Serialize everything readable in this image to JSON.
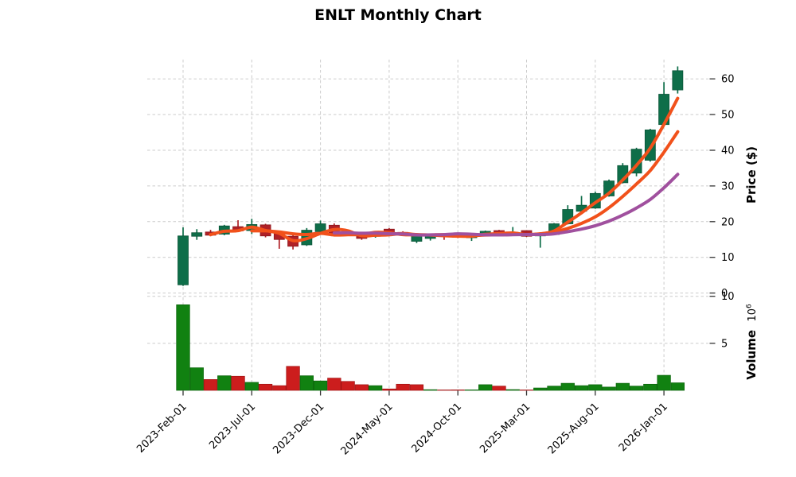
{
  "title": "ENLT Monthly Chart",
  "chart_data": {
    "type": "candlestick",
    "has_volume_panel": true,
    "price_axis": {
      "label": "Price ($)",
      "ticks": [
        0,
        10,
        20,
        30,
        40,
        50,
        60
      ],
      "range": [
        0,
        65.5
      ]
    },
    "volume_axis": {
      "label": "Volume",
      "multiplier_base": "10",
      "multiplier_exp": "6",
      "ticks": [
        5,
        10
      ],
      "range": [
        0,
        10.1
      ]
    },
    "x_axis": {
      "tick_indices": [
        0,
        5,
        10,
        15,
        20,
        25,
        30,
        35
      ],
      "tick_labels": [
        "2023-Feb-01",
        "2023-Jul-01",
        "2023-Dec-01",
        "2024-May-01",
        "2024-Oct-01",
        "2025-Mar-01",
        "2025-Aug-01",
        "2026-Jan-01"
      ]
    },
    "moving_averages": [
      {
        "name": "SMA-3",
        "window": 3,
        "color": "#f1511b"
      },
      {
        "name": "SMA-6",
        "window": 6,
        "color": "#f1511b"
      },
      {
        "name": "SMA-12",
        "window": 12,
        "color": "#a0509e"
      }
    ],
    "colors": {
      "up_candle": "#0e6e49",
      "up_candle_edge": "#0a5437",
      "down_candle": "#b02127",
      "down_candle_edge": "#8c181e",
      "up_volume": "#118111",
      "up_volume_edge": "#0c640c",
      "down_volume": "#cc1d1d",
      "down_volume_edge": "#a11313",
      "grid": "#cccccc",
      "tick": "#333333",
      "text": "#000000",
      "background": "#ffffff"
    },
    "candles": [
      {
        "date": "2023-02",
        "open": 2.3,
        "high": 18.4,
        "low": 2.0,
        "close": 16.0,
        "volume_m": 9.1,
        "dir": "up",
        "vol_dir": "up"
      },
      {
        "date": "2023-03",
        "open": 15.9,
        "high": 17.9,
        "low": 14.9,
        "close": 16.9,
        "volume_m": 2.4,
        "dir": "up",
        "vol_dir": "up"
      },
      {
        "date": "2023-04",
        "open": 17.1,
        "high": 17.7,
        "low": 15.9,
        "close": 16.2,
        "volume_m": 1.15,
        "dir": "down",
        "vol_dir": "down"
      },
      {
        "date": "2023-05",
        "open": 16.5,
        "high": 19.1,
        "low": 16.2,
        "close": 18.8,
        "volume_m": 1.55,
        "dir": "up",
        "vol_dir": "up"
      },
      {
        "date": "2023-06",
        "open": 18.6,
        "high": 20.4,
        "low": 17.2,
        "close": 17.4,
        "volume_m": 1.5,
        "dir": "down",
        "vol_dir": "down"
      },
      {
        "date": "2023-07",
        "open": 17.5,
        "high": 20.8,
        "low": 16.5,
        "close": 19.2,
        "volume_m": 0.85,
        "dir": "up",
        "vol_dir": "up"
      },
      {
        "date": "2023-08",
        "open": 19.1,
        "high": 19.4,
        "low": 15.6,
        "close": 16.0,
        "volume_m": 0.65,
        "dir": "down",
        "vol_dir": "down"
      },
      {
        "date": "2023-09",
        "open": 17.0,
        "high": 17.3,
        "low": 12.4,
        "close": 15.0,
        "volume_m": 0.5,
        "dir": "down",
        "vol_dir": "down"
      },
      {
        "date": "2023-10",
        "open": 15.9,
        "high": 16.2,
        "low": 12.2,
        "close": 13.1,
        "volume_m": 2.55,
        "dir": "down",
        "vol_dir": "down"
      },
      {
        "date": "2023-11",
        "open": 13.5,
        "high": 18.2,
        "low": 13.2,
        "close": 17.6,
        "volume_m": 1.55,
        "dir": "up",
        "vol_dir": "up"
      },
      {
        "date": "2023-12",
        "open": 17.2,
        "high": 20.3,
        "low": 16.9,
        "close": 19.4,
        "volume_m": 1.0,
        "dir": "up",
        "vol_dir": "up"
      },
      {
        "date": "2024-01",
        "open": 19.0,
        "high": 19.5,
        "low": 16.1,
        "close": 16.4,
        "volume_m": 1.3,
        "dir": "down",
        "vol_dir": "down"
      },
      {
        "date": "2024-02",
        "open": 17.0,
        "high": 17.4,
        "low": 16.2,
        "close": 16.5,
        "volume_m": 0.95,
        "dir": "down",
        "vol_dir": "down"
      },
      {
        "date": "2024-03",
        "open": 16.6,
        "high": 16.9,
        "low": 14.9,
        "close": 15.3,
        "volume_m": 0.6,
        "dir": "down",
        "vol_dir": "down"
      },
      {
        "date": "2024-04",
        "open": 15.9,
        "high": 17.2,
        "low": 15.5,
        "close": 16.8,
        "volume_m": 0.5,
        "dir": "up",
        "vol_dir": "up"
      },
      {
        "date": "2024-05",
        "open": 17.9,
        "high": 18.2,
        "low": 16.5,
        "close": 16.8,
        "volume_m": 0.15,
        "dir": "down",
        "vol_dir": "down"
      },
      {
        "date": "2024-06",
        "open": 17.0,
        "high": 17.3,
        "low": 16.1,
        "close": 16.4,
        "volume_m": 0.65,
        "dir": "down",
        "vol_dir": "down"
      },
      {
        "date": "2024-07",
        "open": 14.5,
        "high": 16.2,
        "low": 14.0,
        "close": 16.0,
        "volume_m": 0.6,
        "dir": "up",
        "vol_dir": "down"
      },
      {
        "date": "2024-08",
        "open": 15.3,
        "high": 16.6,
        "low": 14.7,
        "close": 16.4,
        "volume_m": 0.07,
        "dir": "up",
        "vol_dir": "up"
      },
      {
        "date": "2024-09",
        "open": 16.2,
        "high": 16.5,
        "low": 14.9,
        "close": 15.8,
        "volume_m": 0.04,
        "dir": "down",
        "vol_dir": "down"
      },
      {
        "date": "2024-10",
        "open": 16.5,
        "high": 16.8,
        "low": 15.4,
        "close": 15.6,
        "volume_m": 0.05,
        "dir": "down",
        "vol_dir": "down"
      },
      {
        "date": "2024-11",
        "open": 15.5,
        "high": 16.6,
        "low": 14.6,
        "close": 16.4,
        "volume_m": 0.05,
        "dir": "up",
        "vol_dir": "up"
      },
      {
        "date": "2024-12",
        "open": 16.5,
        "high": 17.5,
        "low": 16.3,
        "close": 17.3,
        "volume_m": 0.6,
        "dir": "up",
        "vol_dir": "up"
      },
      {
        "date": "2025-01",
        "open": 17.5,
        "high": 17.7,
        "low": 16.0,
        "close": 16.2,
        "volume_m": 0.45,
        "dir": "down",
        "vol_dir": "down"
      },
      {
        "date": "2025-02",
        "open": 16.2,
        "high": 18.5,
        "low": 16.0,
        "close": 17.0,
        "volume_m": 0.08,
        "dir": "up",
        "vol_dir": "up"
      },
      {
        "date": "2025-03",
        "open": 17.5,
        "high": 17.6,
        "low": 15.7,
        "close": 15.9,
        "volume_m": 0.02,
        "dir": "down",
        "vol_dir": "down"
      },
      {
        "date": "2025-04",
        "open": 16.0,
        "high": 17.0,
        "low": 12.7,
        "close": 16.8,
        "volume_m": 0.25,
        "dir": "up",
        "vol_dir": "up"
      },
      {
        "date": "2025-05",
        "open": 16.4,
        "high": 19.6,
        "low": 16.2,
        "close": 19.4,
        "volume_m": 0.45,
        "dir": "up",
        "vol_dir": "up"
      },
      {
        "date": "2025-06",
        "open": 19.4,
        "high": 24.6,
        "low": 19.2,
        "close": 23.4,
        "volume_m": 0.75,
        "dir": "up",
        "vol_dir": "up"
      },
      {
        "date": "2025-07",
        "open": 22.9,
        "high": 27.2,
        "low": 22.7,
        "close": 24.6,
        "volume_m": 0.5,
        "dir": "up",
        "vol_dir": "up"
      },
      {
        "date": "2025-08",
        "open": 23.8,
        "high": 28.4,
        "low": 23.6,
        "close": 27.9,
        "volume_m": 0.6,
        "dir": "up",
        "vol_dir": "up"
      },
      {
        "date": "2025-09",
        "open": 27.2,
        "high": 31.8,
        "low": 27.0,
        "close": 31.4,
        "volume_m": 0.35,
        "dir": "up",
        "vol_dir": "up"
      },
      {
        "date": "2025-10",
        "open": 30.9,
        "high": 36.4,
        "low": 30.7,
        "close": 35.7,
        "volume_m": 0.75,
        "dir": "up",
        "vol_dir": "up"
      },
      {
        "date": "2025-11",
        "open": 33.6,
        "high": 40.7,
        "low": 32.7,
        "close": 40.3,
        "volume_m": 0.45,
        "dir": "up",
        "vol_dir": "up"
      },
      {
        "date": "2025-12",
        "open": 37.2,
        "high": 46.0,
        "low": 36.8,
        "close": 45.7,
        "volume_m": 0.65,
        "dir": "up",
        "vol_dir": "up"
      },
      {
        "date": "2026-01",
        "open": 47.2,
        "high": 59.1,
        "low": 46.8,
        "close": 55.7,
        "volume_m": 1.6,
        "dir": "up",
        "vol_dir": "up"
      },
      {
        "date": "2026-02",
        "open": 56.9,
        "high": 63.5,
        "low": 55.9,
        "close": 62.3,
        "volume_m": 0.8,
        "dir": "up",
        "vol_dir": "up"
      }
    ]
  }
}
